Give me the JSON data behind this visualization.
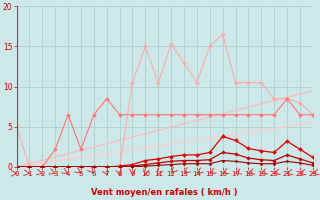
{
  "bg_color": "#cce8e8",
  "grid_color": "#aacccc",
  "xlabel": "Vent moyen/en rafales ( km/h )",
  "xlabel_color": "#cc0000",
  "tick_color": "#cc0000",
  "ylim": [
    0,
    20
  ],
  "xlim": [
    0,
    23
  ],
  "yticks": [
    0,
    5,
    10,
    15,
    20
  ],
  "xticks": [
    0,
    1,
    2,
    3,
    4,
    5,
    6,
    7,
    8,
    9,
    10,
    11,
    12,
    13,
    14,
    15,
    16,
    17,
    18,
    19,
    20,
    21,
    22,
    23
  ],
  "series": [
    {
      "x": [
        0,
        1,
        2,
        3,
        4,
        5,
        6,
        7,
        8,
        9,
        10,
        11,
        12,
        13,
        14,
        15,
        16,
        17,
        18,
        19,
        20,
        21,
        22,
        23
      ],
      "y": [
        5.0,
        0.0,
        0.0,
        0.0,
        0.0,
        0.0,
        0.0,
        0.0,
        0.0,
        10.5,
        15.0,
        10.5,
        15.3,
        13.0,
        10.5,
        15.0,
        16.5,
        10.5,
        10.5,
        10.5,
        8.5,
        8.5,
        8.0,
        6.5
      ],
      "color": "#ffaaaa",
      "linewidth": 0.8,
      "marker": "D",
      "markersize": 2.0,
      "zorder": 3
    },
    {
      "x": [
        0,
        1,
        2,
        3,
        4,
        5,
        6,
        7,
        8,
        9,
        10,
        11,
        12,
        13,
        14,
        15,
        16,
        17,
        18,
        19,
        20,
        21,
        22,
        23
      ],
      "y": [
        0.0,
        0.0,
        0.0,
        2.2,
        6.5,
        2.2,
        6.5,
        8.5,
        6.5,
        6.5,
        6.5,
        6.5,
        6.5,
        6.5,
        6.5,
        6.5,
        6.5,
        6.5,
        6.5,
        6.5,
        6.5,
        8.5,
        6.5,
        6.5
      ],
      "color": "#ff7777",
      "linewidth": 0.8,
      "marker": "D",
      "markersize": 2.0,
      "zorder": 4
    },
    {
      "x": [
        0,
        23
      ],
      "y": [
        0.0,
        9.5
      ],
      "color": "#ffbbbb",
      "linewidth": 0.9,
      "marker": null,
      "markersize": 0,
      "zorder": 2
    },
    {
      "x": [
        0,
        23
      ],
      "y": [
        0.0,
        5.5
      ],
      "color": "#ffcccc",
      "linewidth": 0.9,
      "marker": null,
      "markersize": 0,
      "zorder": 2
    },
    {
      "x": [
        0,
        1,
        2,
        3,
        4,
        5,
        6,
        7,
        8,
        9,
        10,
        11,
        12,
        13,
        14,
        15,
        16,
        17,
        18,
        19,
        20,
        21,
        22,
        23
      ],
      "y": [
        0.0,
        0.0,
        0.0,
        0.0,
        0.0,
        0.0,
        0.0,
        0.0,
        0.1,
        0.3,
        0.8,
        1.0,
        1.3,
        1.5,
        1.5,
        1.8,
        3.8,
        3.3,
        2.3,
        2.0,
        1.8,
        3.2,
        2.2,
        1.2
      ],
      "color": "#dd0000",
      "linewidth": 0.9,
      "marker": "D",
      "markersize": 2.0,
      "zorder": 5
    },
    {
      "x": [
        0,
        1,
        2,
        3,
        4,
        5,
        6,
        7,
        8,
        9,
        10,
        11,
        12,
        13,
        14,
        15,
        16,
        17,
        18,
        19,
        20,
        21,
        22,
        23
      ],
      "y": [
        0.0,
        0.0,
        0.0,
        0.0,
        0.0,
        0.0,
        0.0,
        0.0,
        0.0,
        0.1,
        0.3,
        0.5,
        0.7,
        0.8,
        0.8,
        0.9,
        1.8,
        1.6,
        1.1,
        0.9,
        0.8,
        1.5,
        1.0,
        0.5
      ],
      "color": "#bb0000",
      "linewidth": 0.9,
      "marker": "D",
      "markersize": 1.8,
      "zorder": 5
    },
    {
      "x": [
        0,
        1,
        2,
        3,
        4,
        5,
        6,
        7,
        8,
        9,
        10,
        11,
        12,
        13,
        14,
        15,
        16,
        17,
        18,
        19,
        20,
        21,
        22,
        23
      ],
      "y": [
        0.0,
        0.0,
        0.0,
        0.0,
        0.0,
        0.0,
        0.0,
        0.0,
        0.0,
        0.0,
        0.1,
        0.2,
        0.3,
        0.4,
        0.4,
        0.4,
        0.8,
        0.7,
        0.5,
        0.4,
        0.4,
        0.7,
        0.5,
        0.2
      ],
      "color": "#990000",
      "linewidth": 0.8,
      "marker": "D",
      "markersize": 1.5,
      "zorder": 5
    }
  ],
  "wind_arrows_x": [
    0,
    1,
    2,
    3,
    4,
    5,
    6,
    7,
    8,
    9,
    10,
    11,
    12,
    13,
    14,
    15,
    16,
    17,
    18,
    19,
    20,
    21,
    22,
    23
  ],
  "arrow_color": "#dd2222"
}
